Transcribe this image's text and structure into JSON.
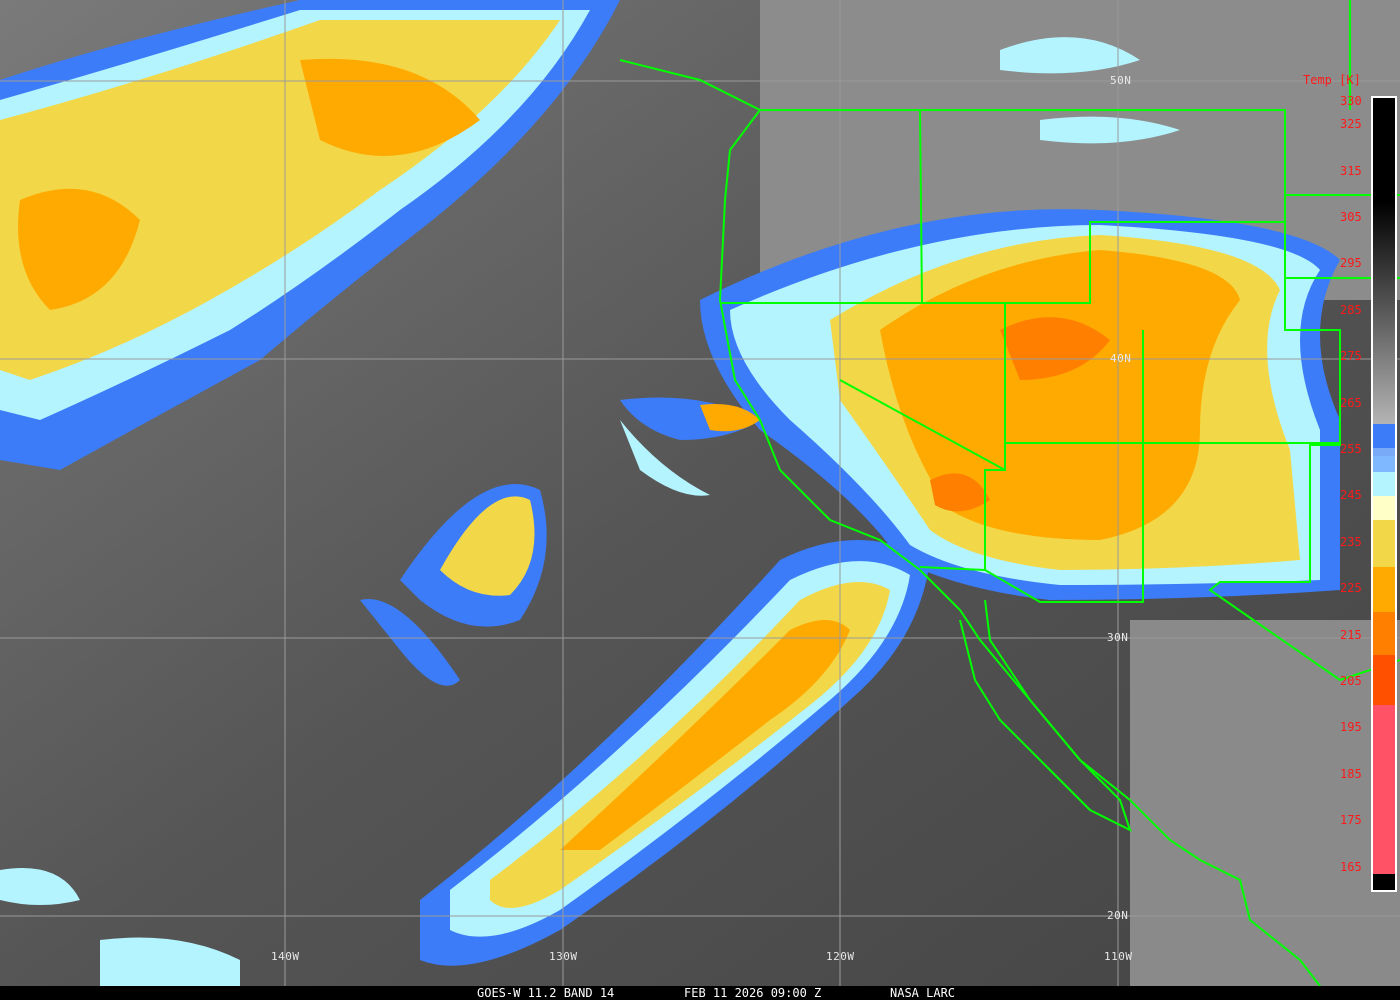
{
  "colors": {
    "grid": "#9a9a9a",
    "borders": "#00ff00",
    "label_red": "#ff1a1a"
  },
  "latitude_labels": [
    "50N",
    "40N",
    "30N",
    "20N"
  ],
  "longitude_labels": [
    "140W",
    "130W",
    "120W",
    "110W"
  ],
  "colorbar": {
    "title": "Temp [K]",
    "ticks": [
      "330",
      "325",
      "315",
      "305",
      "295",
      "285",
      "275",
      "265",
      "255",
      "245",
      "235",
      "225",
      "215",
      "205",
      "195",
      "185",
      "175",
      "165"
    ],
    "stops": [
      {
        "from": 330,
        "to": 305,
        "color": "#000000"
      },
      {
        "from": 305,
        "to": 258,
        "color": "gradient-black-to-lightgray"
      },
      {
        "from": 258,
        "to": 253,
        "color": "#3c7cf8"
      },
      {
        "from": 253,
        "to": 251,
        "color": "#78aaf8"
      },
      {
        "from": 251,
        "to": 248,
        "color": "#80b8ff"
      },
      {
        "from": 248,
        "to": 243,
        "color": "#b4f4ff"
      },
      {
        "from": 243,
        "to": 238,
        "color": "#ffffc8"
      },
      {
        "from": 238,
        "to": 228,
        "color": "#f2d848"
      },
      {
        "from": 228,
        "to": 219,
        "color": "#ffaa00"
      },
      {
        "from": 219,
        "to": 210,
        "color": "#ff8000"
      },
      {
        "from": 210,
        "to": 200,
        "color": "#ff5000"
      },
      {
        "from": 200,
        "to": 166,
        "color": "#ff5266"
      }
    ]
  },
  "caption": {
    "product": "GOES-W 11.2 BAND 14",
    "datetime": "FEB 11 2026 09:00 Z",
    "source": "NASA LARC"
  }
}
